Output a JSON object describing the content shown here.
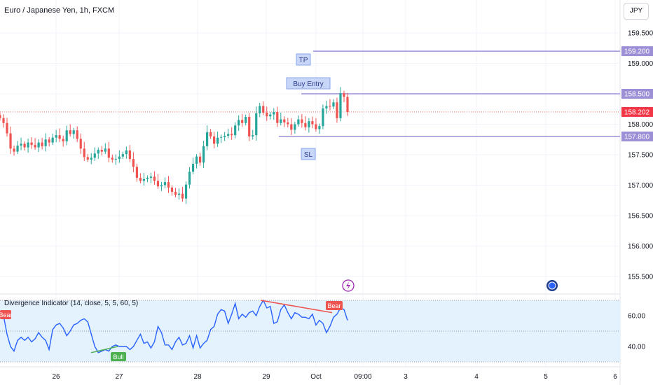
{
  "header": {
    "title": "Euro / Japanese Yen, 1h, FXCM",
    "currency": "JPY"
  },
  "price_axis": {
    "ticks": [
      "159.500",
      "159.000",
      "158.500",
      "158.000",
      "157.500",
      "157.000",
      "156.500",
      "156.000",
      "155.500"
    ],
    "badges": [
      {
        "label": "159.200",
        "price": 159.2,
        "color": "#9c8fd6"
      },
      {
        "label": "158.500",
        "price": 158.5,
        "color": "#9c8fd6"
      },
      {
        "label": "158.202",
        "price": 158.202,
        "color": "#f23645"
      },
      {
        "label": "157.800",
        "price": 157.8,
        "color": "#9c8fd6"
      }
    ]
  },
  "annotations": {
    "tp": "TP",
    "entry": "Buy Entry",
    "sl": "SL"
  },
  "indicator": {
    "title": "Divergence Indicator (14, close, 5, 5, 60, 5)",
    "axis_ticks": [
      "60.00",
      "40.00"
    ],
    "bull_label": "Bull",
    "bear_label": "Bear"
  },
  "time_axis": {
    "labels": [
      "26",
      "27",
      "28",
      "29",
      "Oct",
      "09:00",
      "3",
      "4",
      "5",
      "6"
    ]
  },
  "icons": [
    "lightning-icon",
    "calendar-event-icon"
  ],
  "colors": {
    "up": "#26a69a",
    "down": "#ef5350",
    "level_line": "#9c8fd6",
    "indicator_line": "#2962ff",
    "indicator_band": "#e3f2fd"
  },
  "chart_data": {
    "type": "candlestick",
    "instrument": "Euro / Japanese Yen",
    "interval": "1h",
    "levels": {
      "tp": 159.2,
      "entry": 158.5,
      "sl": 157.8,
      "last": 158.202
    },
    "ylim": [
      155.3,
      159.7
    ],
    "close": [
      158.1,
      158.02,
      157.85,
      157.6,
      157.55,
      157.65,
      157.68,
      157.62,
      157.7,
      157.66,
      157.62,
      157.7,
      157.64,
      157.75,
      157.7,
      157.78,
      157.82,
      157.76,
      157.72,
      157.9,
      157.84,
      157.9,
      157.76,
      157.6,
      157.46,
      157.42,
      157.45,
      157.52,
      157.58,
      157.55,
      157.6,
      157.45,
      157.42,
      157.43,
      157.47,
      157.51,
      157.57,
      157.43,
      157.3,
      157.12,
      157.07,
      157.1,
      157.12,
      157.14,
      157.07,
      156.98,
      157.0,
      157.05,
      156.96,
      156.89,
      156.84,
      156.86,
      156.78,
      157.01,
      157.22,
      157.35,
      157.47,
      157.37,
      157.64,
      157.87,
      157.8,
      157.68,
      157.78,
      157.79,
      157.81,
      157.84,
      157.82,
      157.98,
      158.07,
      158.02,
      158.12,
      157.8,
      157.82,
      158.18,
      158.3,
      158.19,
      158.13,
      158.16,
      158.2,
      158.02,
      158.08,
      158.03,
      158.0,
      157.91,
      158.0,
      158.08,
      158.02,
      157.95,
      158.05,
      158.0,
      157.92,
      157.97,
      158.26,
      158.3,
      158.29,
      158.36,
      158.1,
      158.51,
      158.45,
      158.2
    ],
    "rsi": [
      63,
      60,
      48,
      40,
      37,
      44,
      46,
      44,
      46,
      43,
      45,
      49,
      46,
      44,
      38,
      51,
      54,
      55,
      52,
      47,
      50,
      54,
      55,
      57,
      58,
      56,
      48,
      40,
      36,
      37,
      38,
      37,
      40,
      41,
      40,
      40,
      40,
      38,
      40,
      44,
      48,
      42,
      43,
      39,
      43,
      53,
      49,
      41,
      41,
      38,
      43,
      46,
      41,
      42,
      47,
      39,
      47,
      39,
      42,
      44,
      51,
      53,
      61,
      64,
      63,
      55,
      61,
      68,
      58,
      61,
      59,
      62,
      63,
      60,
      66,
      70,
      65,
      66,
      55,
      56,
      64,
      67,
      62,
      58,
      62,
      61,
      59,
      59,
      58,
      61,
      54,
      57,
      55,
      49,
      53,
      59,
      61,
      65,
      64,
      57
    ]
  }
}
